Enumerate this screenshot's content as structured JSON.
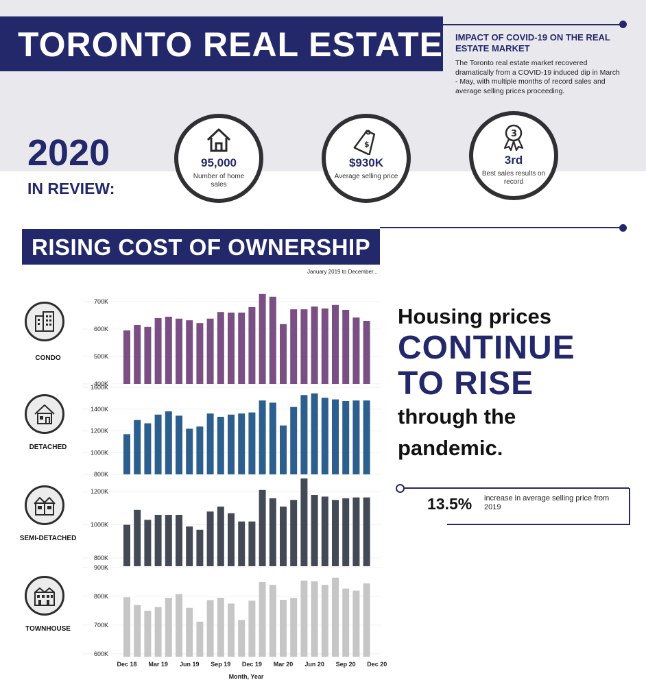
{
  "header": {
    "title": "TORONTO REAL ESTATE",
    "impact_title": "IMPACT OF COVID-19 ON THE REAL ESTATE MARKET",
    "impact_body": "The Toronto real estate market recovered dramatically from a COVID-19 induced dip in March - May, with multiple months of record sales and average selling prices proceeding."
  },
  "review": {
    "year": "2020",
    "label": "IN REVIEW:",
    "stats": [
      {
        "icon": "house-icon",
        "value": "95,000",
        "label": "Number of home sales"
      },
      {
        "icon": "price-tag-icon",
        "value": "$930K",
        "label": "Average selling price"
      },
      {
        "icon": "medal-icon",
        "value": "3rd",
        "label": "Best sales results on record"
      }
    ]
  },
  "section": {
    "title": "RISING COST OF OWNERSHIP",
    "date_range": "January 2019 to December..."
  },
  "headline": {
    "line1": "Housing prices",
    "line2": "CONTINUE",
    "line3": "TO RISE",
    "line4": "through the",
    "line5": "pandemic."
  },
  "highlight": {
    "value": "13.5%",
    "text": "increase in average selling price from 2019"
  },
  "colors": {
    "navy": "#23286b",
    "condo": "#7a4f83",
    "detached": "#2c5f8d",
    "semi_detached": "#434a56",
    "townhouse": "#c6c6c6"
  },
  "chart_data": {
    "type": "bar",
    "xlabel": "Month, Year",
    "x_tick_labels": [
      "Dec 18",
      "Mar 19",
      "Jun 19",
      "Sep 19",
      "Dec 19",
      "Mar 20",
      "Jun 20",
      "Sep 20",
      "Dec 20"
    ],
    "x_tick_indices": [
      0,
      3,
      6,
      9,
      12,
      15,
      18,
      21,
      24
    ],
    "panels": [
      {
        "name": "CONDO",
        "color": "#7a4f83",
        "ylim": [
          400,
          730
        ],
        "yticks": [
          400,
          500,
          600,
          700
        ],
        "ytick_labels": [
          "400K",
          "500K",
          "600K",
          "700K"
        ],
        "values": [
          595,
          615,
          608,
          640,
          645,
          638,
          632,
          622,
          638,
          662,
          660,
          660,
          680,
          728,
          718,
          618,
          672,
          672,
          682,
          675,
          688,
          670,
          642,
          630
        ]
      },
      {
        "name": "DETACHED",
        "color": "#2c5f8d",
        "ylim": [
          800,
          1620
        ],
        "yticks": [
          800,
          1000,
          1200,
          1400,
          1600
        ],
        "ytick_labels": [
          "800K",
          "1000K",
          "1200K",
          "1400K",
          "1600K"
        ],
        "values": [
          1170,
          1300,
          1270,
          1350,
          1380,
          1340,
          1220,
          1240,
          1360,
          1330,
          1350,
          1360,
          1370,
          1480,
          1460,
          1250,
          1420,
          1530,
          1545,
          1505,
          1490,
          1475,
          1480,
          1480
        ]
      },
      {
        "name": "SEMI-DETACHED",
        "color": "#434a56",
        "ylim": [
          750,
          1300
        ],
        "yticks": [
          800,
          1000,
          1200
        ],
        "ytick_labels": [
          "800K",
          "1000K",
          "1200K"
        ],
        "values": [
          1000,
          1090,
          1030,
          1060,
          1060,
          1060,
          990,
          970,
          1080,
          1110,
          1070,
          1020,
          1020,
          1210,
          1160,
          1110,
          1150,
          1280,
          1180,
          1170,
          1150,
          1160,
          1165,
          1165
        ]
      },
      {
        "name": "TOWNHOUSE",
        "color": "#c6c6c6",
        "ylim": [
          590,
          900
        ],
        "yticks": [
          600,
          700,
          800,
          900
        ],
        "ytick_labels": [
          "600K",
          "700K",
          "800K",
          "900K"
        ],
        "values": [
          797,
          770,
          750,
          763,
          795,
          808,
          760,
          712,
          787,
          795,
          775,
          718,
          785,
          850,
          840,
          788,
          795,
          855,
          852,
          840,
          865,
          827,
          820,
          845
        ]
      }
    ]
  }
}
